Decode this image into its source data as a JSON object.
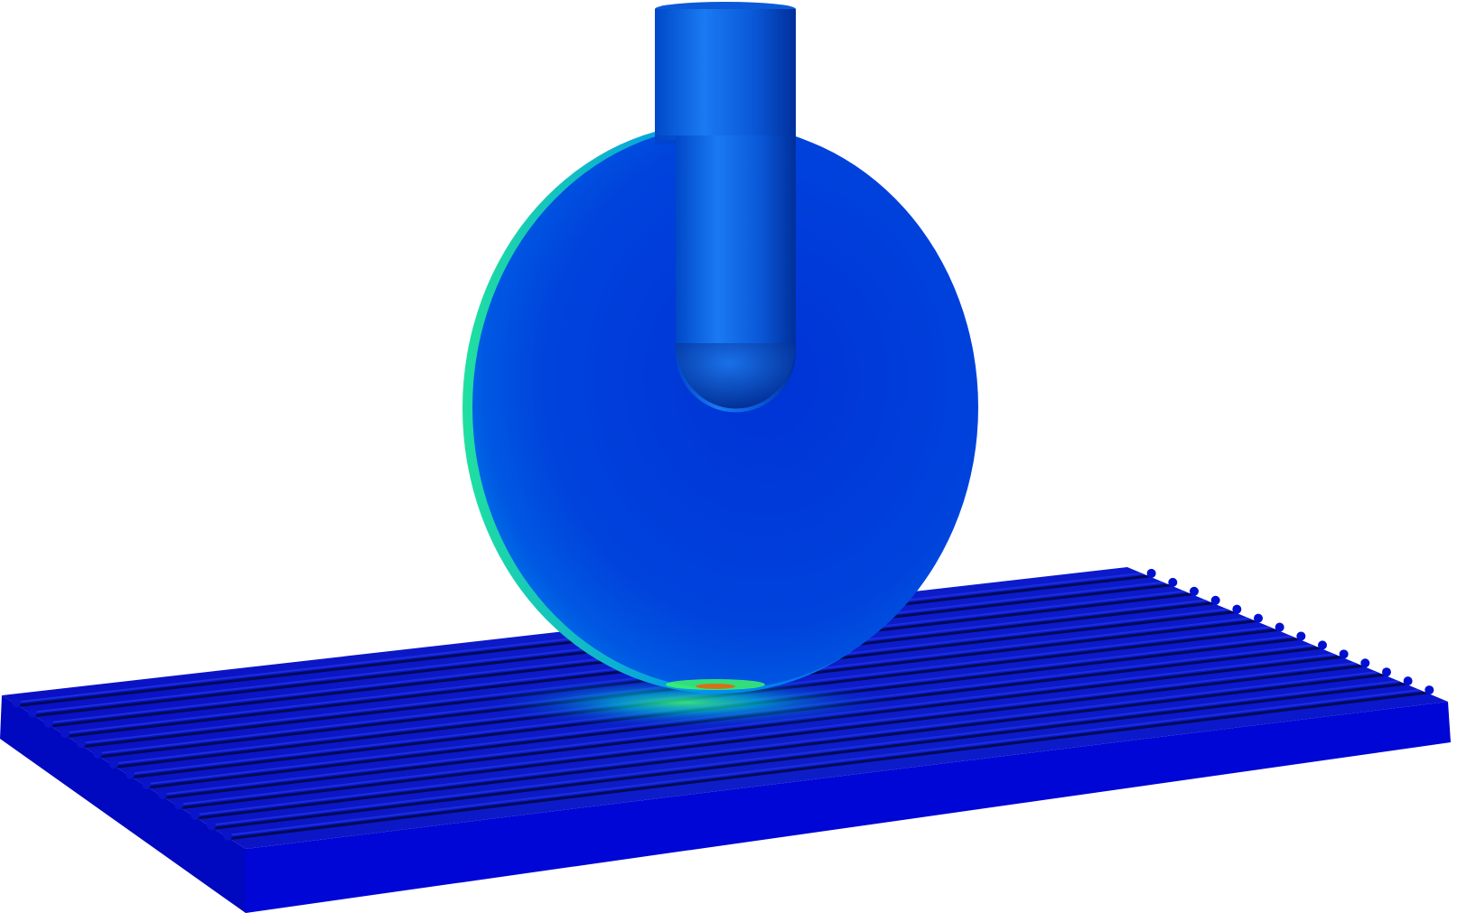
{
  "scene": {
    "background_color": "#ffffff",
    "colormap": [
      "#0000cc",
      "#0055e0",
      "#00aaff",
      "#00e5c0",
      "#33ff66",
      "#ffdd00",
      "#ff3300"
    ],
    "plate": {
      "ridge_count": 14,
      "top_color": "#0a14c8",
      "groove_color": "#000a55",
      "front_color": "#0008d8",
      "side_color": "#0006b8"
    },
    "disk": {
      "color_center": "#0036d8",
      "color_edge": "#0060e6",
      "rim_highlight": "#00e5c0"
    },
    "shaft": {
      "color_light": "#1a7af0",
      "color_dark": "#0038b8"
    }
  }
}
